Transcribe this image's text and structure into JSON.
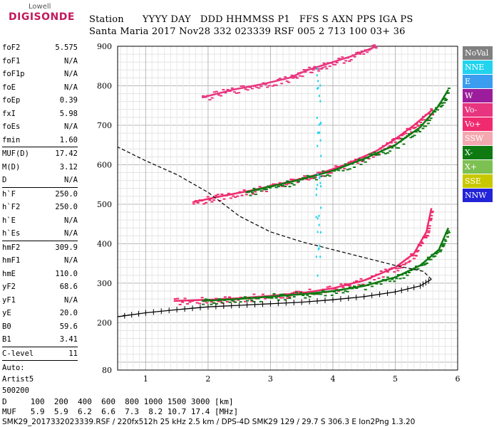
{
  "logo": {
    "line1": "Lowell",
    "line2": "DIGISONDE"
  },
  "header": {
    "labels": [
      "Station",
      "YYYY",
      "DAY",
      "DDD",
      "HHMMSS",
      "P1",
      "FFS",
      "S",
      "AXN",
      "PPS",
      "IGA",
      "PS"
    ],
    "values": [
      "Santa Maria",
      "2017",
      "Nov28",
      "332",
      "023339",
      "RSF",
      "005",
      "2",
      "713",
      "100",
      "03+",
      "36"
    ]
  },
  "params": [
    {
      "name": "foF2",
      "value": "5.575"
    },
    {
      "name": "foF1",
      "value": "N/A"
    },
    {
      "name": "foF1p",
      "value": "N/A"
    },
    {
      "name": "foE",
      "value": "N/A"
    },
    {
      "name": "foEp",
      "value": "0.39"
    },
    {
      "name": "fxI",
      "value": "5.98"
    },
    {
      "name": "foEs",
      "value": "N/A"
    },
    {
      "name": "fmin",
      "value": "1.60"
    },
    {
      "name": "MUF(D)",
      "value": "17.42"
    },
    {
      "name": "M(D)",
      "value": "3.12"
    },
    {
      "name": "D",
      "value": "N/A"
    },
    {
      "name": "h`F",
      "value": "250.0"
    },
    {
      "name": "h`F2",
      "value": "250.0"
    },
    {
      "name": "h`E",
      "value": "N/A"
    },
    {
      "name": "h`Es",
      "value": "N/A"
    },
    {
      "name": "hmF2",
      "value": "309.9"
    },
    {
      "name": "hmF1",
      "value": "N/A"
    },
    {
      "name": "hmE",
      "value": "110.0"
    },
    {
      "name": "yF2",
      "value": "68.6"
    },
    {
      "name": "yF1",
      "value": "N/A"
    },
    {
      "name": "yE",
      "value": "20.0"
    },
    {
      "name": "B0",
      "value": "59.6"
    },
    {
      "name": "B1",
      "value": "3.41"
    },
    {
      "name": "C-level",
      "value": "11"
    }
  ],
  "auto": {
    "line1": "Auto:",
    "line2": "Artist5",
    "line3": "500200"
  },
  "legend": [
    {
      "label": "NoVal",
      "color": "#808080"
    },
    {
      "label": "NNE",
      "color": "#22d3ee"
    },
    {
      "label": "E",
      "color": "#3b9df0"
    },
    {
      "label": "W",
      "color": "#9c1d9c"
    },
    {
      "label": "Vo-",
      "color": "#e8357f"
    },
    {
      "label": "Vo+",
      "color": "#ef2a6e"
    },
    {
      "label": "SSW",
      "color": "#f4a8b0"
    },
    {
      "label": "X-",
      "color": "#0f7a12"
    },
    {
      "label": "X+",
      "color": "#7cc052"
    },
    {
      "label": "SSE",
      "color": "#c8c800"
    },
    {
      "label": "NNW",
      "color": "#2323d8"
    }
  ],
  "footer": {
    "line1": "D     100  200  400  600  800 1000 1500 3000 [km]",
    "line2": "MUF   5.9  5.9  6.2  6.6  7.3  8.2 10.7 17.4 [MHz]",
    "line3": "SMK29_2017332023339.RSF / 220fx512h 25 kHz 2.5 km / DPS-4D SMK29 129 / 29.7 S 306.3 E Ion2Png 1.3.20"
  },
  "chart_data": {
    "type": "scatter",
    "title": "",
    "xlabel": "",
    "ylabel": "",
    "xlim": [
      0.55,
      6.0
    ],
    "ylim": [
      80,
      900
    ],
    "x_ticks": [
      1,
      2,
      3,
      4,
      5,
      6
    ],
    "y_ticks": [
      80,
      200,
      300,
      400,
      500,
      600,
      700,
      800,
      900
    ],
    "series": [
      {
        "name": "Vo+",
        "color": "#ef2a6e",
        "points": [
          [
            1.45,
            255
          ],
          [
            2.0,
            258
          ],
          [
            2.5,
            262
          ],
          [
            3.0,
            268
          ],
          [
            3.5,
            275
          ],
          [
            4.0,
            287
          ],
          [
            4.5,
            307
          ],
          [
            5.0,
            340
          ],
          [
            5.3,
            375
          ],
          [
            5.5,
            430
          ],
          [
            5.58,
            490
          ]
        ]
      },
      {
        "name": "X-",
        "color": "#0f7a12",
        "points": [
          [
            1.9,
            255
          ],
          [
            2.5,
            260
          ],
          [
            3.0,
            266
          ],
          [
            3.5,
            272
          ],
          [
            4.0,
            280
          ],
          [
            4.5,
            293
          ],
          [
            5.0,
            315
          ],
          [
            5.4,
            345
          ],
          [
            5.7,
            385
          ],
          [
            5.85,
            440
          ]
        ]
      },
      {
        "name": "Vo+ (F2 2-hop)",
        "color": "#ef2a6e",
        "points": [
          [
            1.75,
            505
          ],
          [
            2.2,
            520
          ],
          [
            2.7,
            535
          ],
          [
            3.2,
            553
          ],
          [
            3.7,
            573
          ],
          [
            4.2,
            600
          ],
          [
            4.7,
            635
          ],
          [
            5.0,
            665
          ],
          [
            5.3,
            700
          ],
          [
            5.6,
            740
          ]
        ]
      },
      {
        "name": "X- (F2 2-hop)",
        "color": "#0f7a12",
        "points": [
          [
            2.6,
            530
          ],
          [
            3.0,
            545
          ],
          [
            3.5,
            563
          ],
          [
            4.0,
            585
          ],
          [
            4.5,
            615
          ],
          [
            5.0,
            650
          ],
          [
            5.4,
            695
          ],
          [
            5.7,
            750
          ],
          [
            5.85,
            790
          ]
        ]
      },
      {
        "name": "Vo- (F2 3-hop)",
        "color": "#e8357f",
        "points": [
          [
            1.9,
            770
          ],
          [
            2.4,
            790
          ],
          [
            2.9,
            805
          ],
          [
            3.3,
            820
          ],
          [
            3.6,
            840
          ],
          [
            3.9,
            855
          ],
          [
            4.3,
            875
          ],
          [
            4.7,
            900
          ]
        ]
      }
    ],
    "profile": {
      "color": "#000000",
      "points": [
        [
          0.55,
          215
        ],
        [
          1.0,
          225
        ],
        [
          1.5,
          233
        ],
        [
          2.0,
          240
        ],
        [
          2.5,
          244
        ],
        [
          3.0,
          248
        ],
        [
          3.5,
          252
        ],
        [
          4.0,
          258
        ],
        [
          4.5,
          266
        ],
        [
          5.0,
          278
        ],
        [
          5.4,
          293
        ],
        [
          5.58,
          310
        ]
      ]
    },
    "profile_dashed_upper": [
      [
        5.58,
        310
      ],
      [
        5.45,
        330
      ],
      [
        5.0,
        345
      ],
      [
        4.5,
        365
      ],
      [
        4.0,
        385
      ],
      [
        3.5,
        405
      ],
      [
        3.0,
        430
      ],
      [
        2.5,
        470
      ],
      [
        2.0,
        530
      ],
      [
        1.5,
        575
      ],
      [
        1.0,
        610
      ],
      [
        0.55,
        645
      ]
    ],
    "profile_dashed_lower": [
      [
        0.55,
        215
      ],
      [
        0.65,
        218
      ],
      [
        0.8,
        221
      ]
    ]
  }
}
